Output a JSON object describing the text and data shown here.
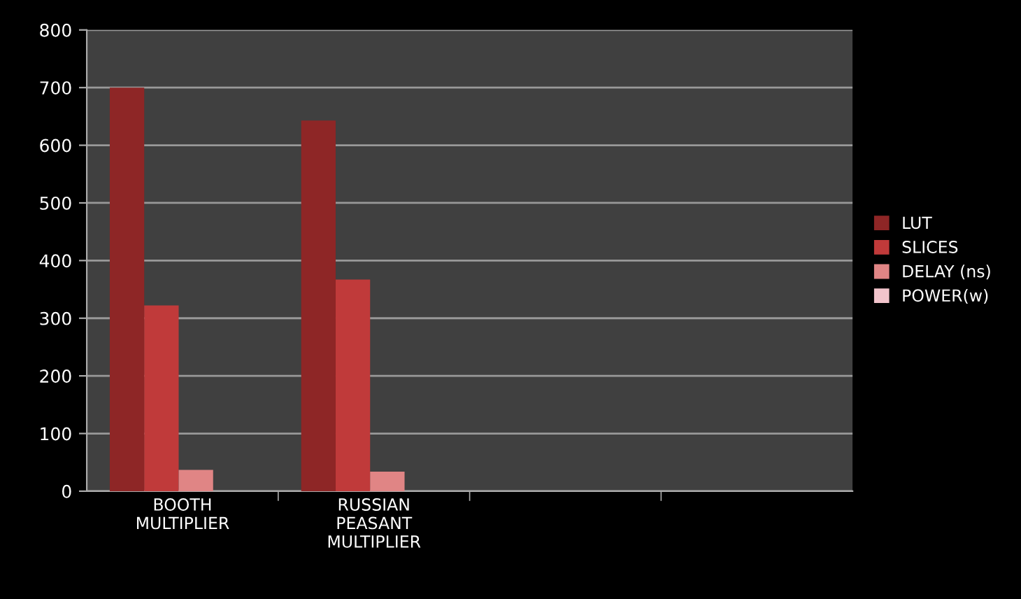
{
  "chart_data": {
    "type": "bar",
    "categories": [
      "BOOTH\nMULTIPLIER",
      "RUSSIAN\nPEASANT\nMULTIPLIER",
      null,
      null
    ],
    "series": [
      {
        "name": "LUT",
        "color": "#8e2626",
        "values": [
          700,
          643,
          null,
          null
        ]
      },
      {
        "name": "SLICES",
        "color": "#c03a3a",
        "values": [
          322,
          367,
          null,
          null
        ]
      },
      {
        "name": "DELAY (ns)",
        "color": "#e08585",
        "values": [
          37,
          34,
          null,
          null
        ]
      },
      {
        "name": "POWER(w)",
        "color": "#f2c4cc",
        "values": [
          0,
          0,
          null,
          null
        ]
      }
    ],
    "ylim": [
      0,
      800
    ],
    "yticks": [
      0,
      100,
      200,
      300,
      400,
      500,
      600,
      700,
      800
    ],
    "grid": "y",
    "legend": "right"
  }
}
